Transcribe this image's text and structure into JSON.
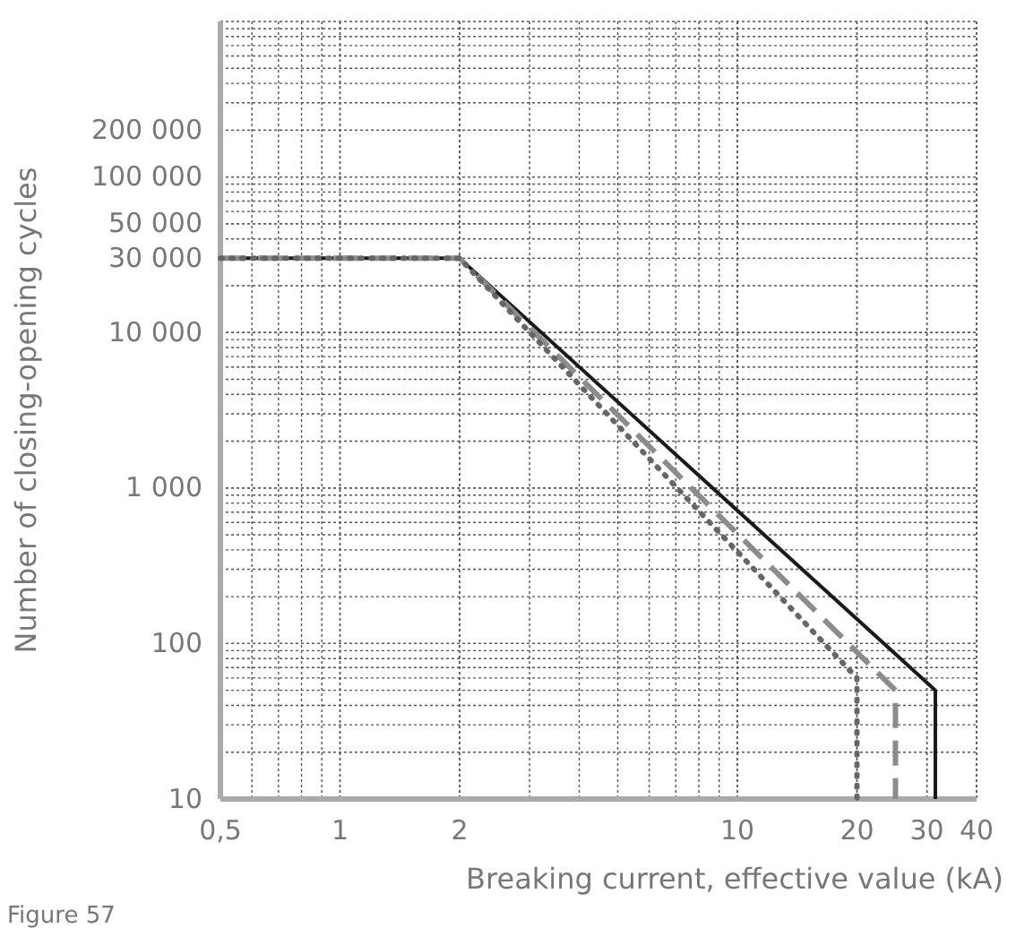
{
  "chart_data": {
    "type": "line",
    "xlabel": "Breaking current, effective value (kA)",
    "ylabel": "Number of closing-opening cycles",
    "log": "xy",
    "grid": true,
    "marker": "none",
    "xlim": [
      0.5,
      40
    ],
    "xticks": [
      {
        "value": 0.5,
        "label": "0,5"
      },
      1,
      2,
      10,
      20,
      30,
      40
    ],
    "ylim": [
      10,
      1000000
    ],
    "yticks": [
      10,
      100,
      {
        "value": 1000,
        "label": "1 000"
      },
      {
        "value": 10000,
        "label": "10 000"
      },
      {
        "value": 30000,
        "label": "30 000"
      },
      {
        "value": 50000,
        "label": "50 000"
      },
      {
        "value": 100000,
        "label": "100 000"
      },
      {
        "value": 200000,
        "label": "200 000"
      }
    ],
    "series": [
      {
        "color": "#1a1a1a",
        "line_style": "solid",
        "x": [
          0.5,
          2,
          31.5,
          31.5
        ],
        "values": [
          30000,
          30000,
          50,
          10
        ]
      },
      {
        "color": "#8c8c8c",
        "line_style": "dashed",
        "x": [
          0.5,
          2,
          25,
          25
        ],
        "values": [
          30000,
          30000,
          50,
          10
        ]
      },
      {
        "color": "#666666",
        "line_style": "dotted",
        "x": [
          0.5,
          2,
          20,
          20
        ],
        "values": [
          30000,
          30000,
          60,
          10
        ]
      }
    ],
    "annotations": [
      "Figure 57"
    ]
  }
}
